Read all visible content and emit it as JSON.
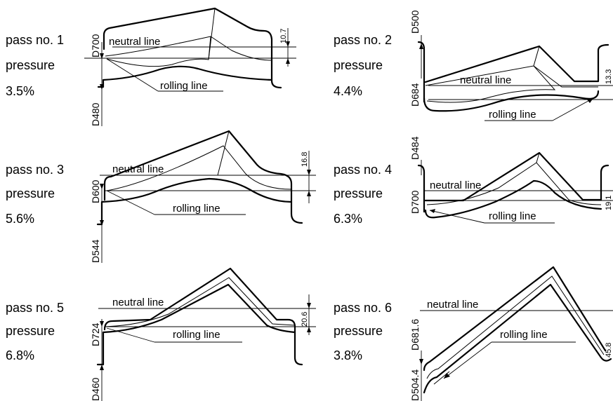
{
  "neutral_label": "neutral line",
  "rolling_label": "rolling line",
  "passes": [
    {
      "pass": "pass no. 1",
      "pressure": "pressure",
      "pct": "3.5%",
      "d_top": "D700",
      "d_bottom": "D480",
      "offset": "10.7"
    },
    {
      "pass": "pass no. 2",
      "pressure": "pressure",
      "pct": "4.4%",
      "d_top": "D500",
      "d_bottom": "D684",
      "offset": "13.3"
    },
    {
      "pass": "pass no. 3",
      "pressure": "pressure",
      "pct": "5.6%",
      "d_top": "D600",
      "d_bottom": "D544",
      "offset": "16.8"
    },
    {
      "pass": "pass no. 4",
      "pressure": "pressure",
      "pct": "6.3%",
      "d_top": "D484",
      "d_bottom": "D700",
      "offset": "19.1"
    },
    {
      "pass": "pass no. 5",
      "pressure": "pressure",
      "pct": "6.8%",
      "d_top": "D724",
      "d_bottom": "D460",
      "offset": "20.6"
    },
    {
      "pass": "pass no. 6",
      "pressure": "pressure",
      "pct": "3.8%",
      "d_top": "D681.6",
      "d_bottom": "D504.4",
      "offset": "45.8"
    }
  ]
}
